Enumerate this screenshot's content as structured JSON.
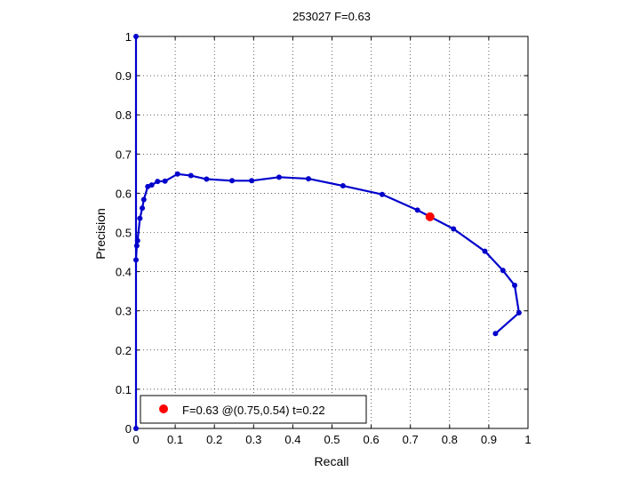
{
  "chart_data": {
    "type": "line",
    "title": "253027 F=0.63",
    "xlabel": "Recall",
    "ylabel": "Precision",
    "xlim": [
      0,
      1
    ],
    "ylim": [
      0,
      1
    ],
    "x_ticks": [
      "0",
      "0.1",
      "0.2",
      "0.3",
      "0.4",
      "0.5",
      "0.6",
      "0.7",
      "0.8",
      "0.9",
      "1"
    ],
    "y_ticks": [
      "0",
      "0.1",
      "0.2",
      "0.3",
      "0.4",
      "0.5",
      "0.6",
      "0.7",
      "0.8",
      "0.9",
      "1"
    ],
    "grid": true,
    "grid_style": "dotted",
    "series": [
      {
        "color": "#0000cc",
        "marker": "dot",
        "points": [
          [
            0.0,
            0.0
          ],
          [
            0.0,
            1.0
          ],
          [
            0.0,
            0.43
          ],
          [
            0.002,
            0.466
          ],
          [
            0.004,
            0.479
          ],
          [
            0.01,
            0.536
          ],
          [
            0.016,
            0.562
          ],
          [
            0.02,
            0.584
          ],
          [
            0.03,
            0.617
          ],
          [
            0.04,
            0.621
          ],
          [
            0.055,
            0.63
          ],
          [
            0.074,
            0.631
          ],
          [
            0.106,
            0.649
          ],
          [
            0.14,
            0.645
          ],
          [
            0.18,
            0.636
          ],
          [
            0.245,
            0.632
          ],
          [
            0.295,
            0.632
          ],
          [
            0.365,
            0.641
          ],
          [
            0.44,
            0.637
          ],
          [
            0.528,
            0.619
          ],
          [
            0.628,
            0.597
          ],
          [
            0.718,
            0.557
          ],
          [
            0.81,
            0.509
          ],
          [
            0.89,
            0.452
          ],
          [
            0.936,
            0.403
          ],
          [
            0.966,
            0.365
          ],
          [
            0.977,
            0.295
          ],
          [
            0.917,
            0.242
          ]
        ]
      }
    ],
    "best_point": {
      "x": 0.75,
      "y": 0.54,
      "color": "#ff0000"
    },
    "legend": {
      "position": "bottom-left",
      "label": "F=0.63 @(0.75,0.54) t=0.22"
    }
  }
}
